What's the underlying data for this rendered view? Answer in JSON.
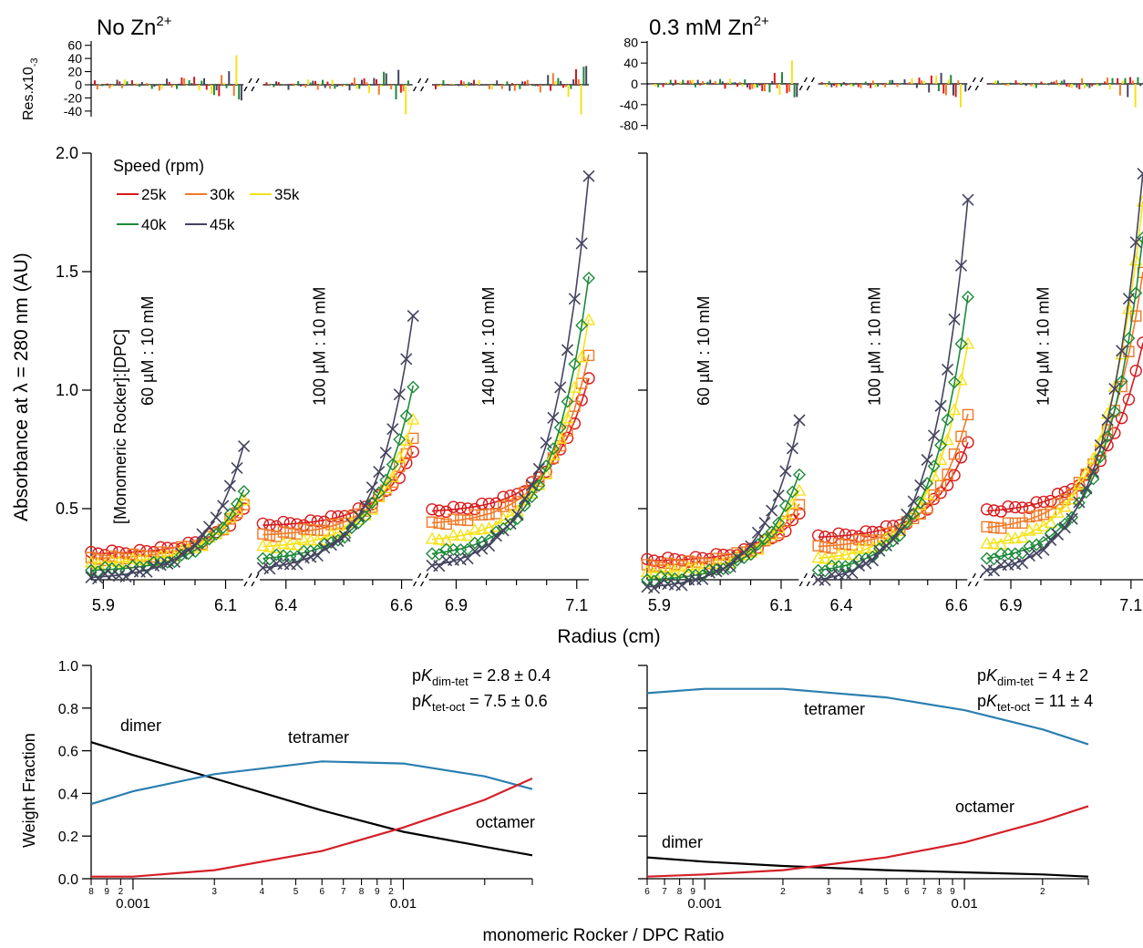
{
  "panels": [
    {
      "title": "No Zn",
      "title_sup": "2+"
    },
    {
      "title": "0.3 mM Zn",
      "title_sup": "2+"
    }
  ],
  "residual_ylabel": "Res.x10",
  "residual_ylabel_sup": "-3",
  "absorbance_ylabel": "Absorbance at  λ = 280 nm (AU)",
  "radius_xlabel": "Radius (cm)",
  "wf_ylabel": "Weight Fraction",
  "wf_xlabel": "monomeric Rocker / DPC Ratio",
  "concentration_header": "[Monomeric Rocker]:[DPC]",
  "legend": {
    "title": "Speed (rpm)",
    "items": [
      {
        "label": "25k",
        "color": "#d7191c"
      },
      {
        "label": "30k",
        "color": "#f07a28"
      },
      {
        "label": "35k",
        "color": "#f5e21a"
      },
      {
        "label": "40k",
        "color": "#1d8a3a"
      },
      {
        "label": "45k",
        "color": "#44445f"
      }
    ]
  },
  "chart_data": [
    {
      "type": "scatter",
      "panel": "No Zn2+",
      "ylim": [
        0.2,
        2.0
      ],
      "yticks": [
        "0.5",
        "1.0",
        "1.5",
        "2.0"
      ],
      "groups": [
        {
          "label": "60 µM : 10 mM",
          "xticks": [
            "5.9",
            "6.1"
          ],
          "r_start": 5.88,
          "r_end": 6.13,
          "series": [
            {
              "speed": "25k",
              "y_start": 0.31,
              "y_end": 0.5
            },
            {
              "speed": "30k",
              "y_start": 0.29,
              "y_end": 0.52
            },
            {
              "speed": "35k",
              "y_start": 0.27,
              "y_end": 0.54
            },
            {
              "speed": "40k",
              "y_start": 0.24,
              "y_end": 0.58
            },
            {
              "speed": "45k",
              "y_start": 0.21,
              "y_end": 0.77
            }
          ]
        },
        {
          "label": "100 µM : 10 mM",
          "xticks": [
            "6.4",
            "6.6"
          ],
          "r_start": 6.36,
          "r_end": 6.62,
          "series": [
            {
              "speed": "25k",
              "y_start": 0.43,
              "y_end": 0.74
            },
            {
              "speed": "30k",
              "y_start": 0.39,
              "y_end": 0.8
            },
            {
              "speed": "35k",
              "y_start": 0.34,
              "y_end": 0.88
            },
            {
              "speed": "40k",
              "y_start": 0.29,
              "y_end": 1.02
            },
            {
              "speed": "45k",
              "y_start": 0.25,
              "y_end": 1.32
            }
          ]
        },
        {
          "label": "140 µM : 10 mM",
          "xticks": [
            "6.9",
            "7.1"
          ],
          "r_start": 6.86,
          "r_end": 7.12,
          "series": [
            {
              "speed": "25k",
              "y_start": 0.49,
              "y_end": 1.05
            },
            {
              "speed": "30k",
              "y_start": 0.44,
              "y_end": 1.15
            },
            {
              "speed": "35k",
              "y_start": 0.37,
              "y_end": 1.3
            },
            {
              "speed": "40k",
              "y_start": 0.31,
              "y_end": 1.48
            },
            {
              "speed": "45k",
              "y_start": 0.26,
              "y_end": 1.91
            }
          ]
        }
      ]
    },
    {
      "type": "scatter",
      "panel": "0.3 mM Zn2+",
      "ylim": [
        0.2,
        2.0
      ],
      "groups": [
        {
          "label": "60 µM : 10 mM",
          "xticks": [
            "5.9",
            "6.1"
          ],
          "r_start": 5.88,
          "r_end": 6.13,
          "series": [
            {
              "speed": "25k",
              "y_start": 0.28,
              "y_end": 0.48
            },
            {
              "speed": "30k",
              "y_start": 0.26,
              "y_end": 0.52
            },
            {
              "speed": "35k",
              "y_start": 0.23,
              "y_end": 0.58
            },
            {
              "speed": "40k",
              "y_start": 0.2,
              "y_end": 0.65
            },
            {
              "speed": "45k",
              "y_start": 0.17,
              "y_end": 0.88
            }
          ]
        },
        {
          "label": "100 µM : 10 mM",
          "xticks": [
            "6.4",
            "6.6"
          ],
          "r_start": 6.36,
          "r_end": 6.62,
          "series": [
            {
              "speed": "25k",
              "y_start": 0.38,
              "y_end": 0.78
            },
            {
              "speed": "30k",
              "y_start": 0.34,
              "y_end": 0.9
            },
            {
              "speed": "35k",
              "y_start": 0.29,
              "y_end": 1.2
            },
            {
              "speed": "40k",
              "y_start": 0.24,
              "y_end": 1.4
            },
            {
              "speed": "45k",
              "y_start": 0.2,
              "y_end": 1.81
            }
          ]
        },
        {
          "label": "140 µM : 10 mM",
          "xticks": [
            "6.9",
            "7.1"
          ],
          "r_start": 6.86,
          "r_end": 7.12,
          "series": [
            {
              "speed": "25k",
              "y_start": 0.49,
              "y_end": 1.2
            },
            {
              "speed": "30k",
              "y_start": 0.42,
              "y_end": 1.5
            },
            {
              "speed": "35k",
              "y_start": 0.35,
              "y_end": 1.8
            },
            {
              "speed": "40k",
              "y_start": 0.29,
              "y_end": 1.65
            },
            {
              "speed": "45k",
              "y_start": 0.24,
              "y_end": 1.92
            }
          ]
        }
      ]
    },
    {
      "type": "line",
      "panel": "No Zn2+ weight fraction",
      "xscale": "log",
      "xlim": [
        0.0007,
        0.03
      ],
      "ylim": [
        0,
        1.0
      ],
      "yticks": [
        "0.0",
        "0.2",
        "0.4",
        "0.6",
        "0.8",
        "1.0"
      ],
      "x": [
        0.0007,
        0.001,
        0.002,
        0.005,
        0.01,
        0.02,
        0.03
      ],
      "series": [
        {
          "name": "dimer",
          "color": "#000000",
          "values": [
            0.64,
            0.58,
            0.47,
            0.32,
            0.22,
            0.15,
            0.11
          ]
        },
        {
          "name": "tetramer",
          "color": "#2a7fb0",
          "values": [
            0.35,
            0.41,
            0.49,
            0.55,
            0.54,
            0.48,
            0.42
          ]
        },
        {
          "name": "octamer",
          "color": "#d42027",
          "values": [
            0.01,
            0.01,
            0.04,
            0.13,
            0.24,
            0.37,
            0.47
          ]
        }
      ],
      "annotations": [
        {
          "p": "p",
          "K": "K",
          "sub": "dim-tet",
          "rest": " = 2.8 ± 0.4"
        },
        {
          "p": "p",
          "K": "K",
          "sub": "tet-oct",
          "rest": " = 7.5 ± 0.6"
        }
      ]
    },
    {
      "type": "line",
      "panel": "0.3 mM Zn2+ weight fraction",
      "xscale": "log",
      "xlim": [
        0.0006,
        0.03
      ],
      "ylim": [
        0,
        1.0
      ],
      "x": [
        0.0006,
        0.001,
        0.002,
        0.005,
        0.01,
        0.02,
        0.03
      ],
      "series": [
        {
          "name": "dimer",
          "color": "#000000",
          "values": [
            0.1,
            0.08,
            0.06,
            0.04,
            0.03,
            0.02,
            0.01
          ]
        },
        {
          "name": "tetramer",
          "color": "#2a7fb0",
          "values": [
            0.87,
            0.89,
            0.89,
            0.85,
            0.79,
            0.7,
            0.63
          ]
        },
        {
          "name": "octamer",
          "color": "#d42027",
          "values": [
            0.01,
            0.02,
            0.04,
            0.1,
            0.17,
            0.27,
            0.34
          ]
        }
      ],
      "annotations": [
        {
          "p": "p",
          "K": "K",
          "sub": "dim-tet",
          "rest": " = 4 ± 2"
        },
        {
          "p": "p",
          "K": "K",
          "sub": "tet-oct",
          "rest": " = 11 ± 4"
        }
      ]
    }
  ],
  "residuals": [
    {
      "panel": "No Zn2+",
      "yticks": [
        "60",
        "40",
        "20",
        "0",
        "-20",
        "-40"
      ],
      "ylim": [
        -50,
        65
      ]
    },
    {
      "panel": "0.3 mM Zn2+",
      "yticks": [
        "80",
        "40",
        "0",
        "-40",
        "-80"
      ],
      "ylim": [
        -85,
        85
      ]
    }
  ],
  "log_ticks": {
    "left": {
      "minor": [
        "8",
        "9",
        "2",
        "3",
        "4",
        "5",
        "6",
        "7",
        "8",
        "9",
        "2"
      ],
      "major": [
        "0.001",
        "0.01"
      ]
    },
    "right": {
      "minor": [
        "6",
        "7",
        "8",
        "9",
        "2",
        "3",
        "4",
        "5",
        "6",
        "7",
        "8",
        "9",
        "2"
      ],
      "major": [
        "0.001",
        "0.01"
      ]
    }
  }
}
